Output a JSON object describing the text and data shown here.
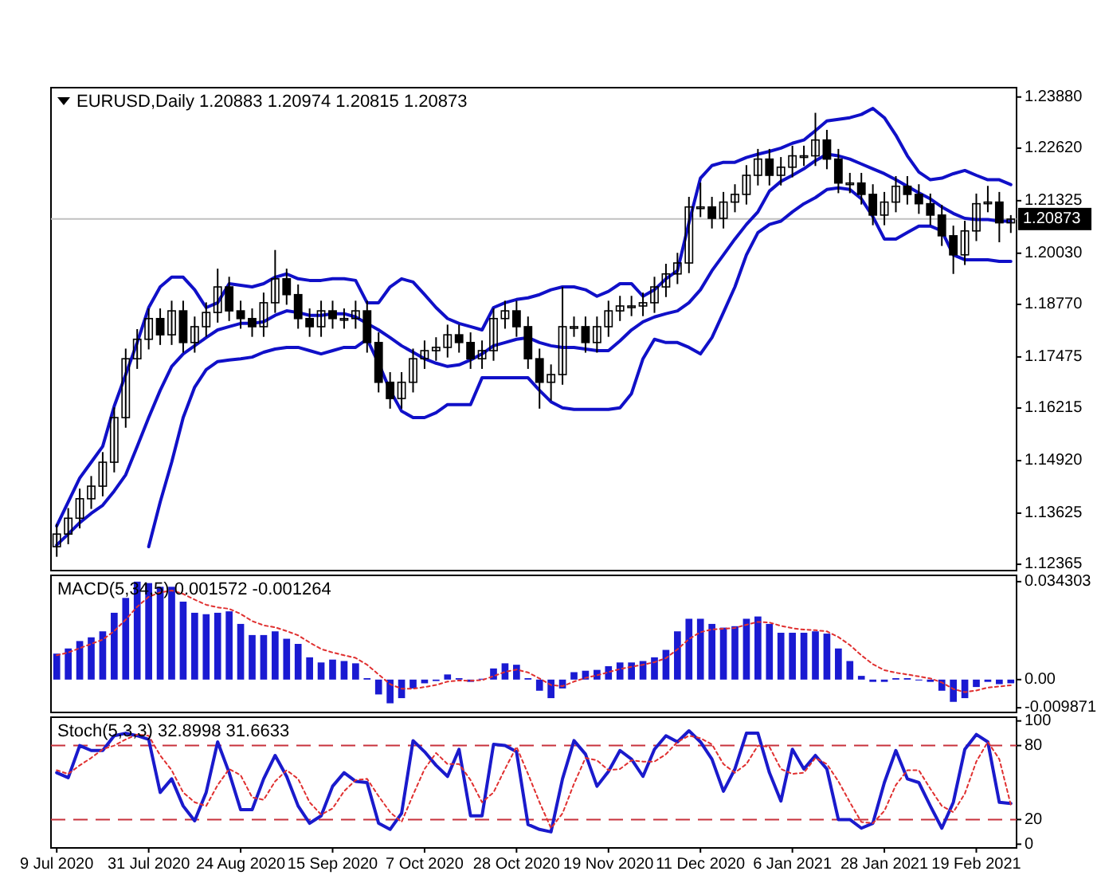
{
  "chart_data": [
    {
      "type": "candlestick",
      "title": "EURUSD,Daily 1.20883 1.20974 1.20815 1.20873",
      "tick_labels": "y",
      "color": "#000000",
      "categories": [
        null,
        null,
        null,
        null,
        null,
        null,
        null,
        null,
        null,
        null,
        null,
        null,
        null,
        null,
        null,
        null,
        null,
        null,
        null,
        null,
        null,
        null,
        null,
        null,
        null,
        null,
        null,
        null,
        null,
        null,
        null,
        null,
        null,
        null,
        null,
        null,
        null,
        null,
        null,
        null,
        null,
        null,
        null,
        null,
        null,
        null,
        null,
        null,
        null,
        null,
        null,
        null,
        null,
        null,
        null,
        null,
        null,
        null,
        null,
        null,
        null,
        null,
        null,
        null,
        null,
        null,
        null,
        null,
        null,
        null,
        null,
        null,
        null,
        null,
        null,
        null,
        null,
        null,
        null,
        null,
        null,
        null,
        null,
        null
      ],
      "ylim": [
        1.1221,
        1.2411
      ],
      "yticks": [
        {
          "value": 1.2388,
          "label": "1.23880"
        },
        {
          "value": 1.2262,
          "label": "1.22620"
        },
        {
          "value": 1.21325,
          "label": "1.21325"
        },
        {
          "value": 1.2003,
          "label": "1.20030"
        },
        {
          "value": 1.1877,
          "label": "1.18770"
        },
        {
          "value": 1.17475,
          "label": "1.17475"
        },
        {
          "value": 1.16215,
          "label": "1.16215"
        },
        {
          "value": 1.1492,
          "label": "1.14920"
        },
        {
          "value": 1.13625,
          "label": "1.13625"
        },
        {
          "value": 1.12365,
          "label": "1.12365"
        }
      ],
      "ref_lines": [
        {
          "axis": "y",
          "value": 1.20873,
          "label": "1.20873",
          "color": "#c0c0c0"
        }
      ],
      "ohlc": [
        [
          1.128,
          1.1336,
          1.1255,
          1.1311
        ],
        [
          1.1311,
          1.1375,
          1.1286,
          1.135
        ],
        [
          1.135,
          1.1423,
          1.1325,
          1.1398
        ],
        [
          1.1398,
          1.1454,
          1.1373,
          1.1429
        ],
        [
          1.1429,
          1.1513,
          1.1404,
          1.1488
        ],
        [
          1.1488,
          1.1623,
          1.1463,
          1.1598
        ],
        [
          1.1598,
          1.1768,
          1.1573,
          1.1743
        ],
        [
          1.1743,
          1.1816,
          1.1718,
          1.1791
        ],
        [
          1.1791,
          1.1867,
          1.1766,
          1.1842
        ],
        [
          1.1842,
          1.1867,
          1.1777,
          1.1802
        ],
        [
          1.1802,
          1.1886,
          1.1777,
          1.1861
        ],
        [
          1.1861,
          1.1886,
          1.1758,
          1.1783
        ],
        [
          1.1783,
          1.1847,
          1.1758,
          1.1822
        ],
        [
          1.1822,
          1.1882,
          1.1797,
          1.1857
        ],
        [
          1.1857,
          1.1965,
          1.1832,
          1.192
        ],
        [
          1.192,
          1.1945,
          1.1836,
          1.1861
        ],
        [
          1.1861,
          1.1886,
          1.1817,
          1.1842
        ],
        [
          1.1842,
          1.1867,
          1.1797,
          1.1822
        ],
        [
          1.1822,
          1.1906,
          1.1797,
          1.1881
        ],
        [
          1.1881,
          1.2011,
          1.1856,
          1.194
        ],
        [
          1.194,
          1.1965,
          1.1876,
          1.1901
        ],
        [
          1.1901,
          1.1926,
          1.1817,
          1.1842
        ],
        [
          1.1842,
          1.1867,
          1.1797,
          1.1822
        ],
        [
          1.1822,
          1.1886,
          1.1797,
          1.1861
        ],
        [
          1.1861,
          1.1886,
          1.1817,
          1.1842
        ],
        [
          1.1842,
          1.1867,
          1.1817,
          1.1842
        ],
        [
          1.1842,
          1.1886,
          1.1817,
          1.1861
        ],
        [
          1.1861,
          1.1886,
          1.1758,
          1.1783
        ],
        [
          1.1783,
          1.1808,
          1.166,
          1.1685
        ],
        [
          1.1685,
          1.171,
          1.162,
          1.1645
        ],
        [
          1.1645,
          1.171,
          1.162,
          1.1685
        ],
        [
          1.1685,
          1.1768,
          1.166,
          1.1743
        ],
        [
          1.1743,
          1.1788,
          1.1718,
          1.1763
        ],
        [
          1.1763,
          1.1796,
          1.1738,
          1.1771
        ],
        [
          1.1771,
          1.1827,
          1.1746,
          1.1802
        ],
        [
          1.1802,
          1.1827,
          1.1758,
          1.1783
        ],
        [
          1.1783,
          1.1808,
          1.1718,
          1.1743
        ],
        [
          1.1743,
          1.1788,
          1.1718,
          1.1763
        ],
        [
          1.1763,
          1.1867,
          1.1738,
          1.1842
        ],
        [
          1.1842,
          1.1886,
          1.1817,
          1.1861
        ],
        [
          1.1861,
          1.1886,
          1.1797,
          1.1822
        ],
        [
          1.1822,
          1.1847,
          1.1718,
          1.1743
        ],
        [
          1.1743,
          1.1768,
          1.162,
          1.1685
        ],
        [
          1.1685,
          1.1729,
          1.164,
          1.1704
        ],
        [
          1.1704,
          1.192,
          1.1679,
          1.1822
        ],
        [
          1.1822,
          1.1847,
          1.1797,
          1.1822
        ],
        [
          1.1822,
          1.1847,
          1.1758,
          1.1783
        ],
        [
          1.1783,
          1.1847,
          1.1758,
          1.1822
        ],
        [
          1.1822,
          1.1886,
          1.1797,
          1.1861
        ],
        [
          1.1861,
          1.1898,
          1.1836,
          1.1873
        ],
        [
          1.1873,
          1.1898,
          1.1848,
          1.1873
        ],
        [
          1.1873,
          1.1906,
          1.1848,
          1.1881
        ],
        [
          1.1881,
          1.1945,
          1.1856,
          1.192
        ],
        [
          1.192,
          1.1977,
          1.1895,
          1.1952
        ],
        [
          1.1952,
          1.2004,
          1.1927,
          1.1979
        ],
        [
          1.1979,
          1.2142,
          1.1954,
          1.2117
        ],
        [
          1.2117,
          1.2177,
          1.2092,
          1.2117
        ],
        [
          1.2117,
          1.2142,
          1.2064,
          1.2089
        ],
        [
          1.2089,
          1.2154,
          1.2064,
          1.2129
        ],
        [
          1.2129,
          1.2173,
          1.2104,
          1.2148
        ],
        [
          1.2148,
          1.222,
          1.2123,
          1.2195
        ],
        [
          1.2195,
          1.226,
          1.217,
          1.2235
        ],
        [
          1.2235,
          1.226,
          1.217,
          1.2195
        ],
        [
          1.2195,
          1.224,
          1.217,
          1.2215
        ],
        [
          1.2215,
          1.2268,
          1.219,
          1.2243
        ],
        [
          1.2243,
          1.2268,
          1.2218,
          1.2243
        ],
        [
          1.2243,
          1.2349,
          1.2218,
          1.2282
        ],
        [
          1.2282,
          1.2307,
          1.221,
          1.2235
        ],
        [
          1.2235,
          1.226,
          1.2151,
          1.2176
        ],
        [
          1.2176,
          1.2201,
          1.2151,
          1.2176
        ],
        [
          1.2176,
          1.2201,
          1.2123,
          1.2148
        ],
        [
          1.2148,
          1.2173,
          1.2072,
          1.2097
        ],
        [
          1.2097,
          1.2154,
          1.2072,
          1.2129
        ],
        [
          1.2129,
          1.2193,
          1.2104,
          1.2168
        ],
        [
          1.2168,
          1.2193,
          1.2123,
          1.2148
        ],
        [
          1.2148,
          1.2173,
          1.21,
          1.2125
        ],
        [
          1.2125,
          1.215,
          1.2072,
          1.2097
        ],
        [
          1.2097,
          1.2122,
          1.2021,
          1.2046
        ],
        [
          1.2046,
          1.2071,
          1.1952,
          1.1999
        ],
        [
          1.1999,
          1.2083,
          1.1974,
          1.2058
        ],
        [
          1.2058,
          1.215,
          1.2033,
          1.2125
        ],
        [
          1.2125,
          1.2169,
          1.2104,
          1.2129
        ],
        [
          1.2129,
          1.2154,
          1.203,
          1.2078
        ],
        [
          1.2078,
          1.2097,
          1.2053,
          1.2087
        ]
      ],
      "series": [
        {
          "type": "line",
          "color": "#1010c8",
          "values": [
            1.1331,
            1.139,
            1.1449,
            1.1488,
            1.1527,
            1.1626,
            1.1704,
            1.1783,
            1.1869,
            1.192,
            1.1944,
            1.1944,
            1.1913,
            1.1869,
            1.1881,
            1.1928,
            1.1924,
            1.192,
            1.1928,
            1.1944,
            1.1952,
            1.194,
            1.1936,
            1.1936,
            1.194,
            1.194,
            1.1936,
            1.1881,
            1.1881,
            1.192,
            1.194,
            1.1932,
            1.1901,
            1.1869,
            1.1842,
            1.183,
            1.1822,
            1.1814,
            1.1869,
            1.1881,
            1.1889,
            1.1893,
            1.1901,
            1.1913,
            1.192,
            1.192,
            1.1913,
            1.1897,
            1.1909,
            1.1928,
            1.1928,
            1.1897,
            1.1913,
            1.194,
            1.196,
            1.2078,
            1.2188,
            1.2219,
            1.2227,
            1.2227,
            1.2239,
            1.2247,
            1.2254,
            1.2262,
            1.2274,
            1.2282,
            1.2305,
            1.2329,
            1.2333,
            1.2337,
            1.2345,
            1.236,
            1.2337,
            1.2294,
            1.2243,
            1.2203,
            1.2184,
            1.2188,
            1.2199,
            1.2207,
            1.2195,
            1.2184,
            1.2184,
            1.2172
          ]
        },
        {
          "type": "line",
          "color": "#1010c8",
          "values": [
            1.1284,
            1.1311,
            1.1339,
            1.1362,
            1.1382,
            1.1417,
            1.1457,
            1.1527,
            1.1598,
            1.1665,
            1.1724,
            1.1755,
            1.1775,
            1.1795,
            1.1814,
            1.1822,
            1.183,
            1.183,
            1.1834,
            1.185,
            1.1861,
            1.1857,
            1.185,
            1.185,
            1.1854,
            1.1854,
            1.1846,
            1.183,
            1.1814,
            1.1795,
            1.1775,
            1.1759,
            1.1743,
            1.1732,
            1.1724,
            1.1728,
            1.174,
            1.1755,
            1.1775,
            1.1783,
            1.1791,
            1.1795,
            1.1783,
            1.1775,
            1.1771,
            1.1771,
            1.1767,
            1.1763,
            1.1763,
            1.1787,
            1.1814,
            1.1834,
            1.1846,
            1.1854,
            1.1861,
            1.1881,
            1.1913,
            1.196,
            1.1999,
            1.2038,
            1.2074,
            1.2105,
            1.2156,
            1.218,
            1.2195,
            1.2211,
            1.2231,
            1.2247,
            1.2243,
            1.2235,
            1.2223,
            1.2211,
            1.2199,
            1.2184,
            1.2168,
            1.2152,
            1.2137,
            1.2117,
            1.2101,
            1.2089,
            1.2086,
            1.2086,
            1.2082,
            1.2082
          ]
        },
        {
          "type": "line",
          "color": "#1010c8",
          "values": [
            null,
            null,
            null,
            null,
            null,
            null,
            null,
            null,
            1.128,
            1.139,
            1.1488,
            1.1598,
            1.1673,
            1.1716,
            1.1736,
            1.174,
            1.1743,
            1.1747,
            1.1759,
            1.1767,
            1.1771,
            1.1771,
            1.1763,
            1.1755,
            1.1763,
            1.1771,
            1.1771,
            1.1791,
            1.1732,
            1.1665,
            1.1614,
            1.1598,
            1.1598,
            1.161,
            1.163,
            1.163,
            1.163,
            1.1696,
            1.1696,
            1.1696,
            1.1696,
            1.1696,
            1.1665,
            1.1637,
            1.1622,
            1.1618,
            1.1618,
            1.1618,
            1.1618,
            1.1622,
            1.1657,
            1.1743,
            1.1791,
            1.1783,
            1.1783,
            1.1771,
            1.1755,
            1.1795,
            1.1857,
            1.192,
            1.1999,
            1.2054,
            1.2074,
            1.2082,
            1.2105,
            1.2125,
            1.214,
            1.216,
            1.2164,
            1.216,
            1.2137,
            1.2093,
            1.2038,
            1.2038,
            1.2054,
            1.207,
            1.207,
            1.2058,
            1.1999,
            1.1987,
            1.1987,
            1.1987,
            1.1983,
            1.1983
          ]
        }
      ]
    },
    {
      "type": "bar",
      "title": "MACD(5,34,5) 0.001572 -0.001264",
      "tick_labels": "y",
      "categories": [
        null,
        null,
        null,
        null,
        null,
        null,
        null,
        null,
        null,
        null,
        null,
        null,
        null,
        null,
        null,
        null,
        null,
        null,
        null,
        null,
        null,
        null,
        null,
        null,
        null,
        null,
        null,
        null,
        null,
        null,
        null,
        null,
        null,
        null,
        null,
        null,
        null,
        null,
        null,
        null,
        null,
        null,
        null,
        null,
        null,
        null,
        null,
        null,
        null,
        null,
        null,
        null,
        null,
        null,
        null,
        null,
        null,
        null,
        null,
        null,
        null,
        null,
        null,
        null,
        null,
        null,
        null,
        null,
        null,
        null,
        null,
        null,
        null,
        null,
        null,
        null,
        null,
        null,
        null,
        null,
        null,
        null,
        null,
        null
      ],
      "ylim": [
        -0.0115,
        0.0365
      ],
      "yticks": [
        0.034303,
        {
          "value": 0,
          "label": "0.00"
        },
        -0.009871
      ],
      "series": [
        {
          "type": "bar",
          "color": "#1a1ad2",
          "values": [
            0.0091,
            0.0109,
            0.0135,
            0.0148,
            0.0169,
            0.0234,
            0.0286,
            0.0343,
            0.0338,
            0.0325,
            0.0325,
            0.0273,
            0.0234,
            0.0229,
            0.0234,
            0.0239,
            0.0195,
            0.0156,
            0.0156,
            0.0169,
            0.0143,
            0.0125,
            0.0078,
            0.006,
            0.007,
            0.0065,
            0.0057,
            0.0005,
            -0.0052,
            -0.0083,
            -0.0065,
            -0.0031,
            -0.0013,
            -0.0005,
            0.0018,
            0.0005,
            -0.0008,
            0.0003,
            0.0039,
            0.0057,
            0.0052,
            0.0005,
            -0.0039,
            -0.0065,
            -0.0031,
            0.0026,
            0.0031,
            0.0034,
            0.0047,
            0.006,
            0.006,
            0.0065,
            0.0078,
            0.0104,
            0.0169,
            0.0213,
            0.0213,
            0.0195,
            0.0182,
            0.0187,
            0.0213,
            0.0221,
            0.0195,
            0.0164,
            0.0164,
            0.0164,
            0.0169,
            0.0161,
            0.0109,
            0.0065,
            0.0013,
            -0.0008,
            -0.0008,
            0.0005,
            0.0005,
            -0.0003,
            -0.0008,
            -0.0039,
            -0.0078,
            -0.0065,
            -0.0026,
            -0.0008,
            -0.0016,
            -0.0013
          ]
        },
        {
          "type": "line",
          "color": "#e03030",
          "line_style": "dotted",
          "values": [
            0.0085,
            0.0095,
            0.011,
            0.0125,
            0.014,
            0.017,
            0.021,
            0.0255,
            0.029,
            0.0305,
            0.0312,
            0.03,
            0.028,
            0.0262,
            0.0253,
            0.0248,
            0.023,
            0.0205,
            0.019,
            0.0183,
            0.017,
            0.0155,
            0.013,
            0.0107,
            0.0095,
            0.0085,
            0.0076,
            0.0052,
            0.0018,
            -0.0016,
            -0.0032,
            -0.0032,
            -0.0026,
            -0.0019,
            -0.0007,
            -0.0003,
            -0.0004,
            -0.0002,
            0.0012,
            0.0027,
            0.0035,
            0.0025,
            0.0004,
            -0.0019,
            -0.0023,
            -0.0007,
            0.0006,
            0.0015,
            0.0026,
            0.0037,
            0.0045,
            0.0052,
            0.0061,
            0.0075,
            0.0106,
            0.0142,
            0.0166,
            0.0176,
            0.0178,
            0.0181,
            0.0192,
            0.0202,
            0.02,
            0.0188,
            0.018,
            0.0175,
            0.0173,
            0.0169,
            0.0149,
            0.0121,
            0.0085,
            0.0054,
            0.0033,
            0.0024,
            0.0018,
            0.0011,
            0.0004,
            -0.001,
            -0.0033,
            -0.0044,
            -0.0038,
            -0.0028,
            -0.0024,
            -0.002
          ]
        }
      ]
    },
    {
      "type": "line",
      "title": "Stoch(5,3,3) 32.8998 31.6633",
      "categories": [
        "9 Jul 2020",
        null,
        null,
        null,
        null,
        null,
        null,
        null,
        "31 Jul 2020",
        null,
        null,
        null,
        null,
        null,
        null,
        null,
        "24 Aug 2020",
        null,
        null,
        null,
        null,
        null,
        null,
        null,
        "15 Sep 2020",
        null,
        null,
        null,
        null,
        null,
        null,
        null,
        "7 Oct 2020",
        null,
        null,
        null,
        null,
        null,
        null,
        null,
        "28 Oct 2020",
        null,
        null,
        null,
        null,
        null,
        null,
        null,
        "19 Nov 2020",
        null,
        null,
        null,
        null,
        null,
        null,
        null,
        "11 Dec 2020",
        null,
        null,
        null,
        null,
        null,
        null,
        null,
        "6 Jan 2021",
        null,
        null,
        null,
        null,
        null,
        null,
        null,
        "28 Jan 2021",
        null,
        null,
        null,
        null,
        null,
        null,
        null,
        "19 Feb 2021",
        null,
        null,
        null
      ],
      "ylim": [
        -3,
        103
      ],
      "yticks": [
        0,
        20,
        80,
        100
      ],
      "ref_lines": [
        {
          "axis": "y",
          "value": 80,
          "color": "#c8323c",
          "line_style": "dashed"
        },
        {
          "axis": "y",
          "value": 20,
          "color": "#c8323c",
          "line_style": "dashed"
        }
      ],
      "series": [
        {
          "type": "line",
          "color": "#1a1acc",
          "values": [
            58,
            54,
            80,
            76,
            76,
            88,
            90,
            88,
            85,
            42,
            53,
            31,
            19,
            42,
            83,
            58,
            28,
            28,
            53,
            72,
            55,
            31,
            17,
            23,
            47,
            58,
            51,
            50,
            17,
            12,
            25,
            84,
            75,
            64,
            55,
            77,
            23,
            23,
            81,
            80,
            75,
            16,
            12,
            10,
            53,
            84,
            73,
            47,
            59,
            76,
            69,
            55,
            77,
            88,
            83,
            92,
            83,
            69,
            43,
            61,
            90,
            90,
            58,
            35,
            77,
            61,
            72,
            61,
            20,
            20,
            13,
            17,
            50,
            76,
            53,
            50,
            31,
            13,
            34,
            77,
            89,
            83,
            34,
            33
          ]
        },
        {
          "type": "line",
          "color": "#e03030",
          "line_style": "dotted",
          "values": [
            60,
            57,
            64,
            70,
            77,
            80,
            85,
            89,
            88,
            72,
            60,
            42,
            34,
            31,
            48,
            61,
            56,
            38,
            36,
            51,
            60,
            53,
            34,
            24,
            29,
            43,
            52,
            53,
            39,
            26,
            18,
            40,
            61,
            74,
            65,
            65,
            52,
            34,
            42,
            61,
            79,
            57,
            34,
            13,
            25,
            49,
            70,
            68,
            60,
            61,
            68,
            67,
            67,
            73,
            83,
            88,
            86,
            81,
            65,
            58,
            65,
            80,
            79,
            61,
            57,
            58,
            70,
            65,
            51,
            34,
            18,
            17,
            27,
            48,
            60,
            60,
            45,
            31,
            26,
            41,
            67,
            83,
            69,
            32
          ]
        }
      ]
    }
  ]
}
